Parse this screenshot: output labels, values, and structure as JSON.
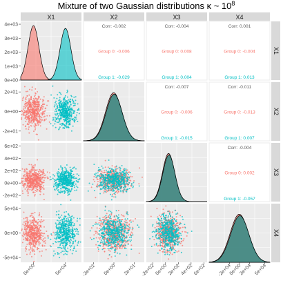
{
  "chart_data": {
    "type": "scatter",
    "title": "Mixture of two Gaussian distributions κ ~ 10",
    "title_exponent": "8",
    "variables": [
      "X1",
      "X2",
      "X3",
      "X4"
    ],
    "groups": [
      {
        "name": "Group 0",
        "color": "#F8766D"
      },
      {
        "name": "Group 1",
        "color": "#00BFC4"
      }
    ],
    "diag_panels": [
      {
        "var": "X1",
        "yticks": [
          "4e+03",
          "3e+03",
          "2e+03",
          "1e+03",
          "0e+00"
        ],
        "yvals": [
          4000,
          3000,
          2000,
          1000,
          0
        ]
      },
      {
        "var": "X2",
        "yticks": [],
        "yvals": []
      },
      {
        "var": "X3",
        "yticks": [],
        "yvals": []
      },
      {
        "var": "X4",
        "yticks": [],
        "yvals": []
      }
    ],
    "row_ticks": [
      {
        "var": "X2",
        "labels": [
          "2e+01",
          "0e+00",
          "-2e+01"
        ],
        "values": [
          20,
          0,
          -20
        ]
      },
      {
        "var": "X3",
        "labels": [
          "6e+02",
          "4e+02",
          "2e+02",
          "0e+00",
          "-2e+02"
        ],
        "values": [
          600,
          400,
          200,
          0,
          -200
        ]
      },
      {
        "var": "X4",
        "labels": [
          "5e+04",
          "0e+00",
          "-5e+04"
        ],
        "values": [
          50000,
          0,
          -50000
        ]
      }
    ],
    "col_ticks": [
      {
        "var": "X1",
        "labels": [
          "0e+00",
          "5e+04"
        ],
        "values": [
          0,
          50000
        ]
      },
      {
        "var": "X2",
        "labels": [
          "-2e+01",
          "0e+00",
          "2e+01"
        ],
        "values": [
          -20,
          0,
          20
        ]
      },
      {
        "var": "X3",
        "labels": [
          "-2e+02",
          "0e+00",
          "2e+02",
          "4e+02",
          "6e+02"
        ],
        "values": [
          -200,
          0,
          200,
          400,
          600
        ]
      },
      {
        "var": "X4",
        "labels": [
          "-2e+04",
          "0e+00",
          "2e+04",
          "5e+04"
        ],
        "values": [
          -20000,
          0,
          20000,
          50000
        ]
      }
    ],
    "correlations": [
      {
        "row": 1,
        "col": 2,
        "overall": "Corr: -0.002",
        "group0": "Group 0: -0.006",
        "group1": "Group 1: -0.029"
      },
      {
        "row": 1,
        "col": 3,
        "overall": "Corr: -0.004",
        "group0": "Group 0: 0.008",
        "group1": "Group 1: 0.004"
      },
      {
        "row": 1,
        "col": 4,
        "overall": "Corr: 0.001",
        "group0": "Group 0: -0.004",
        "group1": "Group 1: 0.013"
      },
      {
        "row": 2,
        "col": 3,
        "overall": "Corr: -0.007",
        "group0": "Group 0: -0.006",
        "group1": "Group 1: -0.015"
      },
      {
        "row": 2,
        "col": 4,
        "overall": "Corr: -0.011",
        "group0": "Group 0: -0.013",
        "group1": "Group 1: 0.007"
      },
      {
        "row": 3,
        "col": 4,
        "overall": "Corr: -0.004",
        "group0": "Group 0: 0.002",
        "group1": "Group 1: -0.057"
      }
    ],
    "x1_density": {
      "group0_peak_x": 0,
      "group1_peak_x": 50000,
      "peak_counts": [
        3900,
        3700
      ]
    },
    "grid": true
  },
  "colors": {
    "panel_bg": "#EBEBEB",
    "grid": "#FFFFFF",
    "strip_bg": "#D9D9D9",
    "overlap_density": "#2E8B85"
  }
}
